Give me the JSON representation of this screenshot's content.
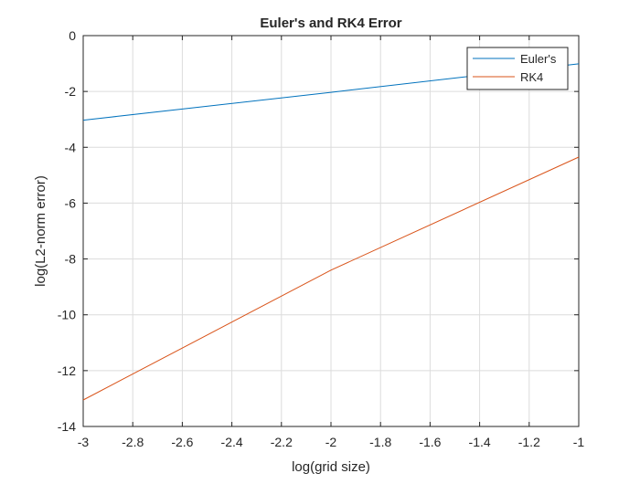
{
  "chart_data": {
    "type": "line",
    "title": "Euler's and RK4 Error",
    "xlabel": "log(grid size)",
    "ylabel": "log(L2-norm error)",
    "xlim": [
      -3,
      -1
    ],
    "ylim": [
      -14,
      0
    ],
    "xticks": [
      -3,
      -2.8,
      -2.6,
      -2.4,
      -2.2,
      -2,
      -1.8,
      -1.6,
      -1.4,
      -1.2,
      -1
    ],
    "xtick_labels": [
      "-3",
      "-2.8",
      "-2.6",
      "-2.4",
      "-2.2",
      "-2",
      "-1.8",
      "-1.6",
      "-1.4",
      "-1.2",
      "-1"
    ],
    "yticks": [
      0,
      -2,
      -4,
      -6,
      -8,
      -10,
      -12,
      -14
    ],
    "ytick_labels": [
      "0",
      "-2",
      "-4",
      "-6",
      "-8",
      "-10",
      "-12",
      "-14"
    ],
    "grid": true,
    "legend_location": "top-right",
    "series": [
      {
        "name": "Euler's",
        "color": "#0072BD",
        "x": [
          -3,
          -2,
          -1
        ],
        "y": [
          -3.03,
          -2.03,
          -1.01
        ]
      },
      {
        "name": "RK4",
        "color": "#D95319",
        "x": [
          -3,
          -2,
          -1
        ],
        "y": [
          -13.05,
          -8.4,
          -4.35
        ]
      }
    ]
  }
}
